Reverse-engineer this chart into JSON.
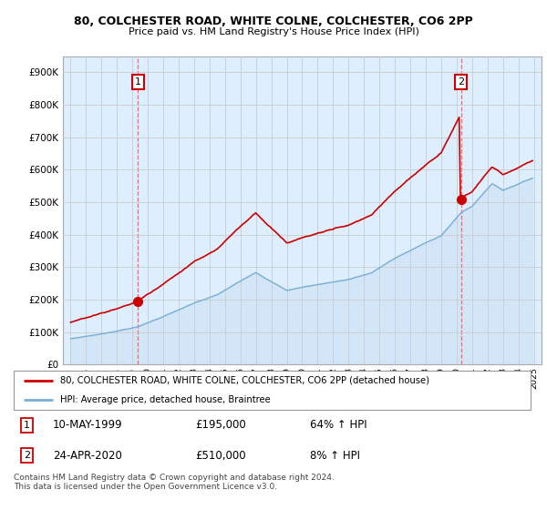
{
  "title1": "80, COLCHESTER ROAD, WHITE COLNE, COLCHESTER, CO6 2PP",
  "title2": "Price paid vs. HM Land Registry's House Price Index (HPI)",
  "legend_label1": "80, COLCHESTER ROAD, WHITE COLNE, COLCHESTER, CO6 2PP (detached house)",
  "legend_label2": "HPI: Average price, detached house, Braintree",
  "point1_date": "10-MAY-1999",
  "point1_price": "£195,000",
  "point1_hpi": "64% ↑ HPI",
  "point2_date": "24-APR-2020",
  "point2_price": "£510,000",
  "point2_hpi": "8% ↑ HPI",
  "footnote": "Contains HM Land Registry data © Crown copyright and database right 2024.\nThis data is licensed under the Open Government Licence v3.0.",
  "ytick_labels": [
    "£0",
    "£100K",
    "£200K",
    "£300K",
    "£400K",
    "£500K",
    "£600K",
    "£700K",
    "£800K",
    "£900K"
  ],
  "ytick_vals": [
    0,
    100000,
    200000,
    300000,
    400000,
    500000,
    600000,
    700000,
    800000,
    900000
  ],
  "color_price": "#cc0000",
  "color_hpi": "#7aadd4",
  "color_vline": "#ff6666",
  "color_bg": "#ddeeff",
  "grid_color": "#cccccc",
  "t1": 1999.37,
  "t2": 2020.29,
  "price1": 195000,
  "price2": 510000
}
